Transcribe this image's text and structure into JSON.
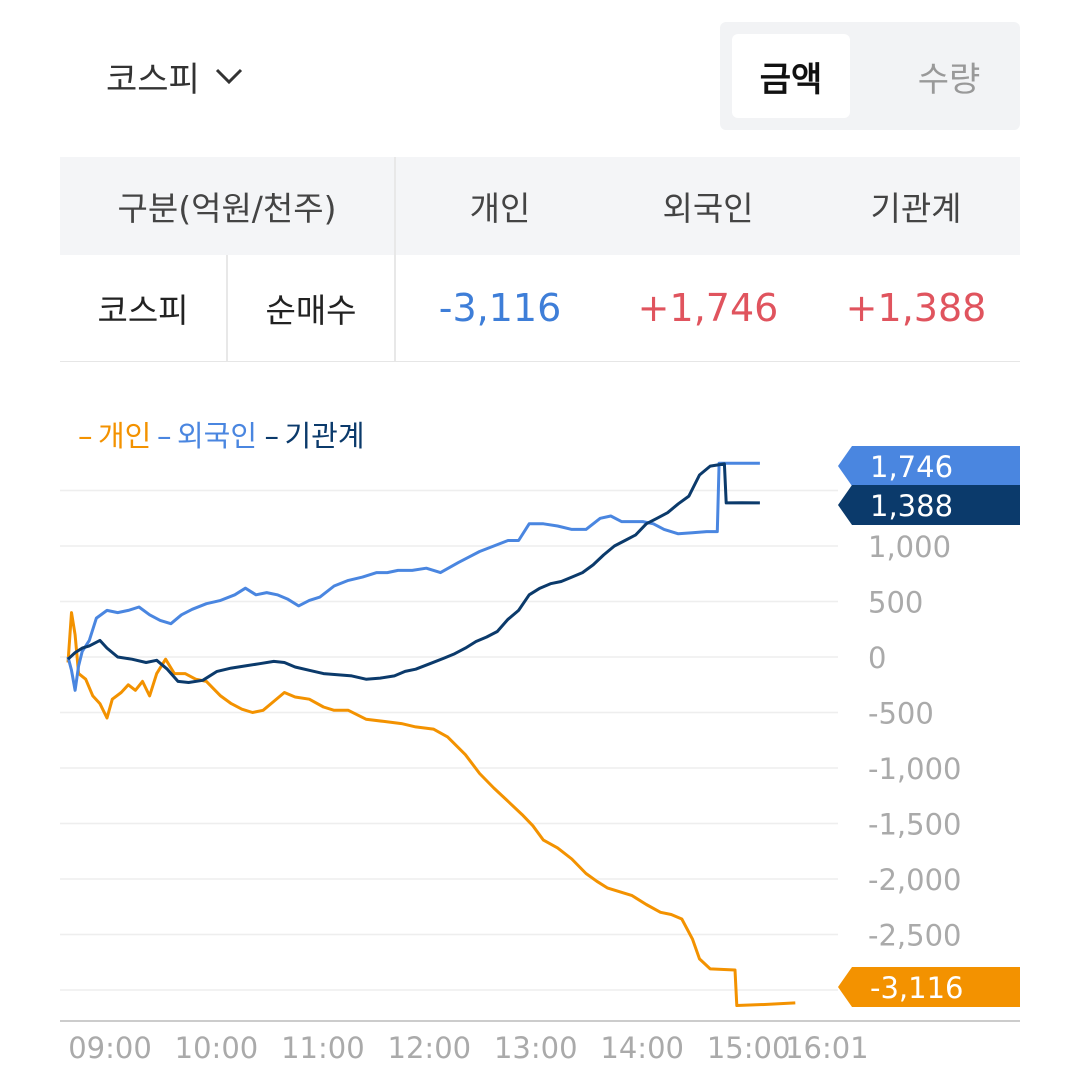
{
  "header": {
    "market_label": "코스피",
    "toggle": {
      "active": "금액",
      "inactive": "수량"
    }
  },
  "table": {
    "header": {
      "category": "구분(억원/천주)",
      "col1": "개인",
      "col2": "외국인",
      "col3": "기관계"
    },
    "row": {
      "market": "코스피",
      "type": "순매수",
      "col1": "-3,116",
      "col2": "+1,746",
      "col3": "+1,388"
    }
  },
  "colors": {
    "individual": "#f39200",
    "foreign": "#4a86e0",
    "institution": "#0b3a6b",
    "down": "#3e7ed8",
    "up": "#e0545e"
  },
  "chart_data": {
    "type": "line",
    "legend": [
      "개인",
      "외국인",
      "기관계"
    ],
    "y_ticks": [
      "1,000",
      "500",
      "0",
      "-500",
      "-1,000",
      "-1,500",
      "-2,000",
      "-2,500"
    ],
    "y_tick_values": [
      1000,
      500,
      0,
      -500,
      -1000,
      -1500,
      -2000,
      -2500
    ],
    "x_ticks": [
      "09:00",
      "10:00",
      "11:00",
      "12:00",
      "13:00",
      "14:00",
      "15:00",
      "16:01"
    ],
    "x_tick_values": [
      0,
      60,
      120,
      180,
      240,
      300,
      360,
      421
    ],
    "ylim": [
      -3150,
      1900
    ],
    "end_labels": {
      "foreign": "1,746",
      "institution": "1,388",
      "individual": "-3,116"
    },
    "series": [
      {
        "name": "개인",
        "color": "#f39200",
        "points": [
          [
            0,
            -50
          ],
          [
            2,
            400
          ],
          [
            4,
            200
          ],
          [
            6,
            -150
          ],
          [
            10,
            -200
          ],
          [
            14,
            -350
          ],
          [
            18,
            -420
          ],
          [
            22,
            -550
          ],
          [
            25,
            -380
          ],
          [
            30,
            -320
          ],
          [
            34,
            -250
          ],
          [
            38,
            -300
          ],
          [
            42,
            -220
          ],
          [
            46,
            -350
          ],
          [
            50,
            -150
          ],
          [
            55,
            -20
          ],
          [
            60,
            -150
          ],
          [
            66,
            -150
          ],
          [
            72,
            -200
          ],
          [
            78,
            -220
          ],
          [
            86,
            -350
          ],
          [
            92,
            -420
          ],
          [
            98,
            -470
          ],
          [
            104,
            -500
          ],
          [
            110,
            -480
          ],
          [
            116,
            -400
          ],
          [
            122,
            -320
          ],
          [
            128,
            -360
          ],
          [
            136,
            -380
          ],
          [
            144,
            -450
          ],
          [
            150,
            -480
          ],
          [
            158,
            -480
          ],
          [
            168,
            -560
          ],
          [
            178,
            -580
          ],
          [
            188,
            -600
          ],
          [
            196,
            -630
          ],
          [
            206,
            -650
          ],
          [
            214,
            -720
          ],
          [
            224,
            -880
          ],
          [
            232,
            -1050
          ],
          [
            240,
            -1180
          ],
          [
            248,
            -1300
          ],
          [
            256,
            -1420
          ],
          [
            262,
            -1520
          ],
          [
            268,
            -1650
          ],
          [
            276,
            -1720
          ],
          [
            284,
            -1820
          ],
          [
            292,
            -1950
          ],
          [
            298,
            -2020
          ],
          [
            304,
            -2080
          ],
          [
            312,
            -2120
          ],
          [
            318,
            -2150
          ],
          [
            326,
            -2230
          ],
          [
            334,
            -2300
          ],
          [
            340,
            -2320
          ],
          [
            346,
            -2360
          ],
          [
            352,
            -2540
          ],
          [
            356,
            -2720
          ],
          [
            362,
            -2810
          ],
          [
            376,
            -2820
          ],
          [
            377,
            -3140
          ],
          [
            394,
            -3130
          ],
          [
            410,
            -3116
          ]
        ]
      },
      {
        "name": "외국인",
        "color": "#4a86e0",
        "points": [
          [
            0,
            0
          ],
          [
            2,
            -120
          ],
          [
            4,
            -300
          ],
          [
            6,
            -80
          ],
          [
            8,
            50
          ],
          [
            12,
            150
          ],
          [
            16,
            350
          ],
          [
            22,
            420
          ],
          [
            28,
            400
          ],
          [
            34,
            420
          ],
          [
            40,
            450
          ],
          [
            46,
            380
          ],
          [
            52,
            330
          ],
          [
            58,
            300
          ],
          [
            64,
            380
          ],
          [
            70,
            430
          ],
          [
            78,
            480
          ],
          [
            86,
            510
          ],
          [
            94,
            560
          ],
          [
            100,
            620
          ],
          [
            106,
            560
          ],
          [
            112,
            580
          ],
          [
            118,
            560
          ],
          [
            124,
            520
          ],
          [
            130,
            460
          ],
          [
            136,
            510
          ],
          [
            142,
            540
          ],
          [
            150,
            640
          ],
          [
            158,
            690
          ],
          [
            166,
            720
          ],
          [
            174,
            760
          ],
          [
            180,
            760
          ],
          [
            186,
            780
          ],
          [
            194,
            780
          ],
          [
            202,
            800
          ],
          [
            210,
            760
          ],
          [
            220,
            850
          ],
          [
            226,
            900
          ],
          [
            232,
            950
          ],
          [
            240,
            1000
          ],
          [
            248,
            1050
          ],
          [
            254,
            1050
          ],
          [
            260,
            1200
          ],
          [
            268,
            1200
          ],
          [
            276,
            1180
          ],
          [
            284,
            1150
          ],
          [
            292,
            1150
          ],
          [
            300,
            1250
          ],
          [
            306,
            1270
          ],
          [
            312,
            1220
          ],
          [
            318,
            1220
          ],
          [
            324,
            1220
          ],
          [
            330,
            1200
          ],
          [
            336,
            1150
          ],
          [
            344,
            1110
          ],
          [
            352,
            1120
          ],
          [
            360,
            1130
          ],
          [
            366,
            1130
          ],
          [
            367,
            1746
          ],
          [
            390,
            1746
          ]
        ]
      },
      {
        "name": "기관계",
        "color": "#0b3a6b",
        "points": [
          [
            0,
            -20
          ],
          [
            4,
            40
          ],
          [
            8,
            80
          ],
          [
            12,
            100
          ],
          [
            18,
            150
          ],
          [
            22,
            80
          ],
          [
            28,
            0
          ],
          [
            36,
            -20
          ],
          [
            44,
            -50
          ],
          [
            50,
            -30
          ],
          [
            56,
            -110
          ],
          [
            62,
            -220
          ],
          [
            68,
            -230
          ],
          [
            76,
            -210
          ],
          [
            84,
            -130
          ],
          [
            92,
            -100
          ],
          [
            100,
            -80
          ],
          [
            108,
            -60
          ],
          [
            116,
            -40
          ],
          [
            122,
            -50
          ],
          [
            128,
            -90
          ],
          [
            136,
            -120
          ],
          [
            144,
            -150
          ],
          [
            152,
            -160
          ],
          [
            160,
            -170
          ],
          [
            168,
            -200
          ],
          [
            176,
            -190
          ],
          [
            184,
            -170
          ],
          [
            190,
            -130
          ],
          [
            196,
            -110
          ],
          [
            204,
            -60
          ],
          [
            212,
            -10
          ],
          [
            218,
            30
          ],
          [
            224,
            80
          ],
          [
            230,
            140
          ],
          [
            236,
            180
          ],
          [
            242,
            230
          ],
          [
            248,
            340
          ],
          [
            254,
            420
          ],
          [
            260,
            560
          ],
          [
            266,
            620
          ],
          [
            272,
            660
          ],
          [
            278,
            680
          ],
          [
            284,
            720
          ],
          [
            290,
            760
          ],
          [
            296,
            830
          ],
          [
            302,
            920
          ],
          [
            308,
            1000
          ],
          [
            314,
            1050
          ],
          [
            320,
            1100
          ],
          [
            326,
            1200
          ],
          [
            332,
            1250
          ],
          [
            338,
            1300
          ],
          [
            344,
            1380
          ],
          [
            350,
            1450
          ],
          [
            356,
            1640
          ],
          [
            362,
            1720
          ],
          [
            370,
            1740
          ],
          [
            371,
            1388
          ],
          [
            380,
            1390
          ],
          [
            390,
            1388
          ]
        ]
      }
    ]
  }
}
